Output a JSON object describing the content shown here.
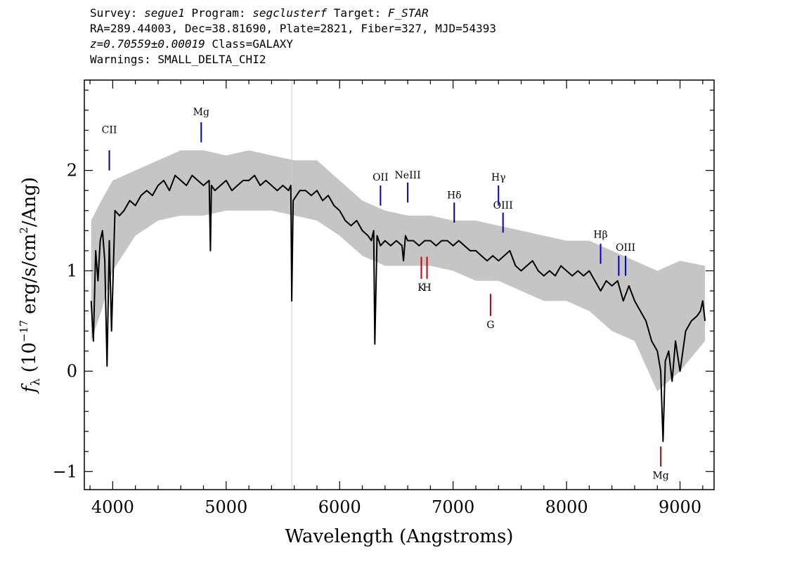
{
  "header": {
    "survey_label": "Survey: ",
    "survey_value": "segue1",
    "program_label": " Program: ",
    "program_value": "segclusterf",
    "target_label": " Target: ",
    "target_value": "F_STAR",
    "coords_line": "RA=289.44003, Dec=38.81690, Plate=2821, Fiber=327, MJD=54393",
    "redshift_value": "z=0.70559±0.00019",
    "class_text": " Class=GALAXY",
    "warnings_line": "Warnings: SMALL_DELTA_CHI2"
  },
  "chart_data": {
    "type": "line",
    "xlabel": "Wavelength (Angstroms)",
    "ylabel_prefix": "f",
    "ylabel_sub": "λ",
    "ylabel_paren_open": " (10",
    "ylabel_exp": "−17",
    "ylabel_mid": " erg/s/cm",
    "ylabel_exp2": "2",
    "ylabel_end": "/Ang)",
    "xlim": [
      3750,
      9300
    ],
    "ylim": [
      -1.18,
      2.9
    ],
    "xticks": [
      4000,
      5000,
      6000,
      7000,
      8000,
      9000
    ],
    "xtick_labels": [
      "4000",
      "5000",
      "6000",
      "7000",
      "8000",
      "9000"
    ],
    "yticks": [
      -1,
      0,
      1,
      2
    ],
    "ytick_labels": [
      "−1",
      "0",
      "1",
      "2"
    ],
    "series": [
      {
        "role": "flux",
        "color": "#000000",
        "x": [
          3810,
          3830,
          3850,
          3870,
          3890,
          3910,
          3930,
          3950,
          3970,
          3990,
          4020,
          4060,
          4100,
          4150,
          4200,
          4250,
          4300,
          4350,
          4400,
          4450,
          4500,
          4550,
          4600,
          4650,
          4700,
          4750,
          4800,
          4850,
          4861,
          4870,
          4900,
          4950,
          5000,
          5050,
          5100,
          5150,
          5200,
          5250,
          5300,
          5350,
          5400,
          5450,
          5500,
          5550,
          5570,
          5578,
          5590,
          5620,
          5650,
          5700,
          5750,
          5800,
          5850,
          5900,
          5950,
          6000,
          6050,
          6100,
          6150,
          6200,
          6250,
          6280,
          6300,
          6310,
          6330,
          6360,
          6400,
          6450,
          6500,
          6550,
          6563,
          6580,
          6600,
          6650,
          6700,
          6750,
          6800,
          6850,
          6900,
          6950,
          7000,
          7050,
          7100,
          7150,
          7200,
          7250,
          7300,
          7350,
          7400,
          7450,
          7500,
          7550,
          7600,
          7650,
          7700,
          7750,
          7800,
          7850,
          7900,
          7950,
          8000,
          8050,
          8100,
          8150,
          8200,
          8250,
          8300,
          8350,
          8400,
          8450,
          8500,
          8550,
          8600,
          8650,
          8700,
          8750,
          8800,
          8830,
          8850,
          8870,
          8900,
          8930,
          8960,
          9000,
          9050,
          9100,
          9150,
          9180,
          9200,
          9220
        ],
        "y": [
          0.7,
          0.3,
          1.2,
          0.9,
          1.3,
          1.4,
          1.1,
          0.05,
          1.3,
          0.4,
          1.6,
          1.55,
          1.6,
          1.7,
          1.65,
          1.75,
          1.8,
          1.75,
          1.85,
          1.9,
          1.8,
          1.95,
          1.9,
          1.85,
          1.95,
          1.9,
          1.85,
          1.9,
          1.2,
          1.85,
          1.8,
          1.85,
          1.9,
          1.8,
          1.85,
          1.9,
          1.9,
          1.95,
          1.85,
          1.9,
          1.85,
          1.8,
          1.85,
          1.8,
          1.85,
          0.7,
          1.7,
          1.75,
          1.8,
          1.8,
          1.75,
          1.8,
          1.7,
          1.75,
          1.65,
          1.6,
          1.5,
          1.45,
          1.5,
          1.4,
          1.35,
          1.3,
          1.4,
          0.27,
          1.35,
          1.25,
          1.3,
          1.25,
          1.3,
          1.25,
          1.1,
          1.35,
          1.3,
          1.3,
          1.25,
          1.3,
          1.3,
          1.25,
          1.3,
          1.3,
          1.25,
          1.3,
          1.25,
          1.2,
          1.2,
          1.15,
          1.1,
          1.15,
          1.1,
          1.15,
          1.2,
          1.05,
          1.0,
          1.05,
          1.1,
          1.0,
          0.95,
          1.0,
          0.95,
          1.05,
          1.0,
          0.95,
          1.0,
          0.95,
          1.0,
          0.9,
          0.8,
          0.9,
          0.85,
          0.9,
          0.7,
          0.85,
          0.7,
          0.6,
          0.5,
          0.3,
          0.2,
          0.0,
          -0.7,
          0.1,
          0.2,
          -0.1,
          0.3,
          0.0,
          0.4,
          0.5,
          0.55,
          0.6,
          0.7,
          0.5
        ]
      },
      {
        "role": "noise band",
        "color": "#bbbbbb",
        "x": [
          3810,
          3900,
          4000,
          4200,
          4400,
          4600,
          4800,
          5000,
          5200,
          5400,
          5600,
          5800,
          6000,
          6200,
          6400,
          6600,
          6800,
          7000,
          7200,
          7400,
          7600,
          7800,
          8000,
          8200,
          8400,
          8600,
          8800,
          9000,
          9220
        ],
        "y_low": [
          0.3,
          0.6,
          1.0,
          1.35,
          1.5,
          1.55,
          1.55,
          1.6,
          1.6,
          1.6,
          1.55,
          1.5,
          1.35,
          1.15,
          1.05,
          1.05,
          1.05,
          1.0,
          0.9,
          0.9,
          0.8,
          0.7,
          0.7,
          0.6,
          0.4,
          0.3,
          -0.2,
          0.0,
          0.3
        ],
        "y_high": [
          1.5,
          1.7,
          1.9,
          2.0,
          2.1,
          2.2,
          2.2,
          2.15,
          2.2,
          2.15,
          2.1,
          2.1,
          1.9,
          1.7,
          1.6,
          1.55,
          1.55,
          1.5,
          1.5,
          1.45,
          1.4,
          1.35,
          1.3,
          1.3,
          1.2,
          1.1,
          1.0,
          1.1,
          1.05
        ]
      }
    ],
    "annotations": [
      {
        "label": "CII",
        "x": 3970,
        "y0": 2.0,
        "y1": 2.2,
        "label_y": 2.37,
        "color": "#000080"
      },
      {
        "label": "Mg",
        "x": 4780,
        "y0": 2.28,
        "y1": 2.48,
        "label_y": 2.55,
        "color": "#0000cc"
      },
      {
        "label": "OII",
        "x": 6360,
        "y0": 1.65,
        "y1": 1.85,
        "label_y": 1.9,
        "color": "#0000cc"
      },
      {
        "label": "NeIII",
        "x": 6600,
        "y0": 1.68,
        "y1": 1.88,
        "label_y": 1.92,
        "color": "#0000cc"
      },
      {
        "label": "Hδ",
        "x": 7010,
        "y0": 1.48,
        "y1": 1.68,
        "label_y": 1.72,
        "color": "#000080"
      },
      {
        "label": "Hγ",
        "x": 7400,
        "y0": 1.65,
        "y1": 1.85,
        "label_y": 1.9,
        "color": "#0000cc"
      },
      {
        "label": "OIII",
        "x": 7440,
        "y0": 1.38,
        "y1": 1.58,
        "label_y": 1.62,
        "color": "#0000cc"
      },
      {
        "label": "Hβ",
        "x": 8300,
        "y0": 1.07,
        "y1": 1.27,
        "label_y": 1.33,
        "color": "#0000cc"
      },
      {
        "label": "OIII",
        "x": 8520,
        "y0": 0.95,
        "y1": 1.15,
        "label_y": 1.2,
        "color": "#0000cc"
      },
      {
        "label": "K",
        "x": 6720,
        "y0": 0.92,
        "y1": 1.14,
        "label_y": 0.8,
        "color": "#cc0000"
      },
      {
        "label": "H",
        "x": 6770,
        "y0": 0.92,
        "y1": 1.14,
        "label_y": 0.8,
        "color": "#cc0000"
      },
      {
        "label": "G",
        "x": 7330,
        "y0": 0.55,
        "y1": 0.77,
        "label_y": 0.43,
        "color": "#cc0000"
      },
      {
        "label": "Mg",
        "x": 8830,
        "y0": -0.95,
        "y1": -0.75,
        "label_y": -1.07,
        "color": "#cc0000"
      }
    ],
    "extra_ticks": [
      {
        "x": 8460,
        "y0": 0.95,
        "y1": 1.15,
        "color": "#0000cc"
      }
    ]
  }
}
